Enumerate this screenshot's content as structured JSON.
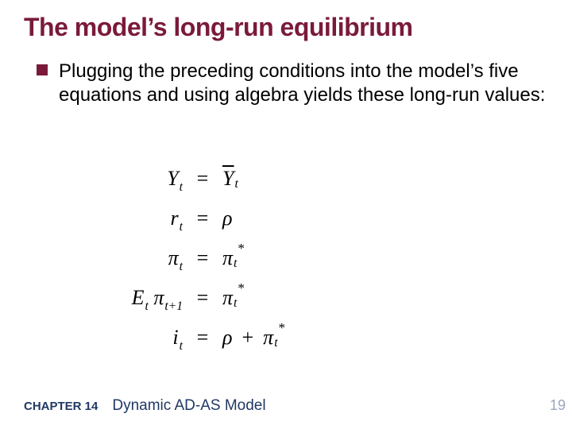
{
  "colors": {
    "title": "#7a1a3a",
    "bullet": "#7a1a3a",
    "body": "#000000",
    "footer": "#203864",
    "pagenum": "#9aa6bf",
    "bg": "#ffffff"
  },
  "fontsizes": {
    "title": 32,
    "body": 24,
    "equation": 26,
    "chapter": 15,
    "model": 19,
    "pagenum": 18
  },
  "title": "The model’s long-run equilibrium",
  "bullet": "Plugging the preceding conditions into the model’s five equations and using algebra yields these long-run values:",
  "equations": [
    {
      "lhs_html": "Y<span class='sub'>t</span>",
      "rhs_html": "<span class='bar'>Y</span><span class='sub'>t</span>"
    },
    {
      "lhs_html": "r<span class='sub'>t</span>",
      "rhs_html": "<span style='font-style:italic'>ρ</span>"
    },
    {
      "lhs_html": "π<span class='sub'>t</span>",
      "rhs_html": "π<span class='sub'>t</span><span class='sup'>*</span>"
    },
    {
      "lhs_html": "E<span class='sub'>t</span>&nbsp;π<span class='sub'>t+1</span>",
      "rhs_html": "π<span class='sub'>t</span><span class='sup'>*</span>"
    },
    {
      "lhs_html": "i<span class='sub'>t</span>",
      "rhs_html": "<span style='font-style:italic'>ρ</span><span class='plus'>+</span>π<span class='sub'>t</span><span class='sup'>*</span>"
    }
  ],
  "footer": {
    "chapter": "CHAPTER 14",
    "model": "Dynamic AD-AS Model",
    "page": "19"
  }
}
